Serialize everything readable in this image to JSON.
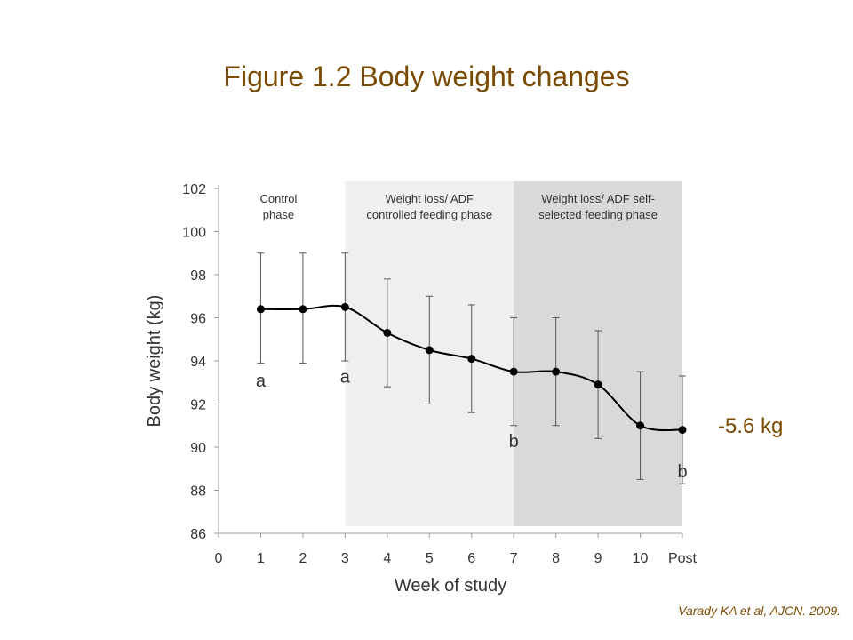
{
  "slide": {
    "title": "Figure 1.2 Body weight changes",
    "delta_label": "-5.6 kg",
    "citation": "Varady KA et al, AJCN. 2009."
  },
  "colors": {
    "title": "#7a4a00",
    "phase_light": "#efefef",
    "phase_dark": "#d9d9d9",
    "line": "#000000"
  },
  "chart_data": {
    "type": "line",
    "title": "",
    "xlabel": "Week of study",
    "ylabel": "Body weight (kg)",
    "x_ticks": [
      "0",
      "1",
      "2",
      "3",
      "4",
      "5",
      "6",
      "7",
      "8",
      "9",
      "10",
      "Post"
    ],
    "y_ticks": [
      86,
      88,
      90,
      92,
      94,
      96,
      98,
      100,
      102
    ],
    "ylim": [
      86,
      102
    ],
    "grid": false,
    "series": [
      {
        "x": [
          "1",
          "2",
          "3",
          "4",
          "5",
          "6",
          "7",
          "8",
          "9",
          "10",
          "Post"
        ],
        "values": [
          96.4,
          96.4,
          96.5,
          95.3,
          94.5,
          94.1,
          93.5,
          93.5,
          92.9,
          91.0,
          90.8
        ],
        "error_low": [
          93.9,
          93.9,
          94.0,
          92.8,
          92.0,
          91.6,
          91.0,
          91.0,
          90.4,
          88.5,
          88.3
        ],
        "error_high": [
          99.0,
          99.0,
          99.0,
          97.8,
          97.0,
          96.6,
          96.0,
          96.0,
          95.4,
          93.5,
          93.3
        ]
      }
    ],
    "phases": [
      {
        "label_lines": [
          "Control",
          "phase"
        ],
        "x_start": "0",
        "x_end": "3",
        "shade": "none"
      },
      {
        "label_lines": [
          "Weight loss/ ADF",
          "controlled feeding phase"
        ],
        "x_start": "3",
        "x_end": "7",
        "shade": "light"
      },
      {
        "label_lines": [
          "Weight loss/ ADF self-",
          "selected feeding phase"
        ],
        "x_start": "7",
        "x_end": "Post",
        "shade": "dark"
      }
    ],
    "annotations": [
      {
        "text": "a",
        "x": "1",
        "y": 92.8
      },
      {
        "text": "a",
        "x": "3",
        "y": 93.0
      },
      {
        "text": "b",
        "x": "7",
        "y": 90.0
      },
      {
        "text": "b",
        "x": "Post",
        "y": 88.6
      }
    ]
  }
}
